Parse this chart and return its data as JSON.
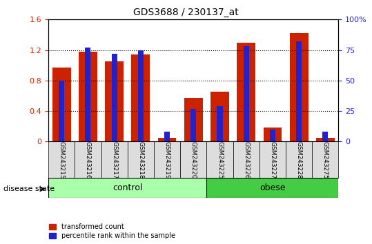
{
  "title": "GDS3688 / 230137_at",
  "samples": [
    "GSM243215",
    "GSM243216",
    "GSM243217",
    "GSM243218",
    "GSM243219",
    "GSM243220",
    "GSM243225",
    "GSM243226",
    "GSM243227",
    "GSM243228",
    "GSM243275"
  ],
  "transformed_count": [
    0.97,
    1.18,
    1.05,
    1.14,
    0.05,
    0.57,
    0.65,
    1.3,
    0.18,
    1.42,
    0.05
  ],
  "percentile_rank": [
    50,
    77,
    72,
    75,
    8,
    27,
    29,
    78,
    10,
    82,
    8
  ],
  "red_color": "#CC2200",
  "blue_color": "#2222CC",
  "ylim_left": [
    0,
    1.6
  ],
  "ylim_right": [
    0,
    100
  ],
  "yticks_left": [
    0,
    0.4,
    0.8,
    1.2,
    1.6
  ],
  "yticks_right": [
    0,
    25,
    50,
    75,
    100
  ],
  "ytick_labels_left": [
    "0",
    "0.4",
    "0.8",
    "1.2",
    "1.6"
  ],
  "ytick_labels_right": [
    "0",
    "25",
    "50",
    "75",
    "100%"
  ],
  "control_samples": [
    "GSM243215",
    "GSM243216",
    "GSM243217",
    "GSM243218",
    "GSM243219",
    "GSM243220"
  ],
  "obese_samples": [
    "GSM243225",
    "GSM243226",
    "GSM243227",
    "GSM243228",
    "GSM243275"
  ],
  "control_color": "#AAFFAA",
  "obese_color": "#44CC44",
  "bar_width": 0.35,
  "legend_red": "transformed count",
  "legend_blue": "percentile rank within the sample",
  "disease_state_label": "disease state",
  "control_label": "control",
  "obese_label": "obese",
  "background_color": "#FFFFFF",
  "plot_bg_color": "#FFFFFF",
  "tick_label_bg": "#DDDDDD"
}
